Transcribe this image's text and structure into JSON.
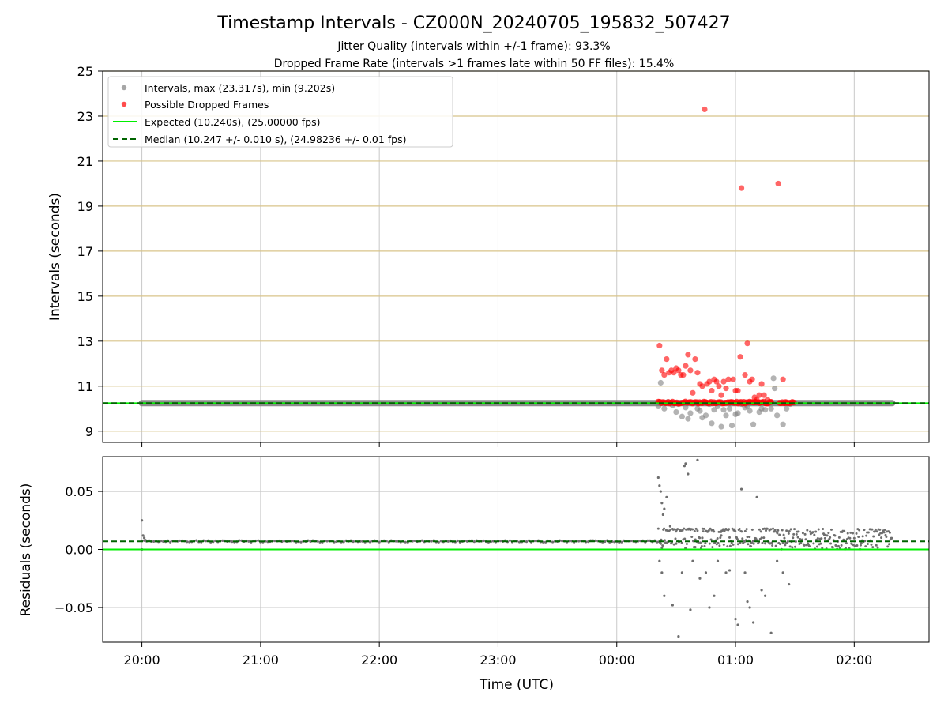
{
  "chart_data": [
    {
      "panel": "top",
      "type": "scatter",
      "title": "Timestamp Intervals - CZ000N_20240705_195832_507427",
      "subtitle_lines": [
        "Jitter Quality (intervals within +/-1 frame): 93.3%",
        "Dropped Frame Rate (intervals >1 frames late within 50 FF files): 15.4%"
      ],
      "xlabel": "",
      "ylabel": "Intervals (seconds)",
      "xlim_hours": [
        19.67,
        26.63
      ],
      "ylim": [
        8.5,
        25
      ],
      "yticks": [
        9,
        11,
        13,
        15,
        17,
        19,
        21,
        23,
        25
      ],
      "ytick_labels": [
        "9",
        "11",
        "13",
        "15",
        "17",
        "19",
        "21",
        "23",
        "25"
      ],
      "xticks_hours": [
        20,
        21,
        22,
        23,
        24,
        25,
        26
      ],
      "grid": true,
      "legend_position": "top-left",
      "legend": [
        "Intervals, max (23.317s), min (9.202s)",
        "Possible Dropped Frames",
        "Expected (10.240s), (25.00000 fps)",
        "Median (10.247 +/- 0.010 s), (24.98236 +/- 0.01 fps)"
      ],
      "expected_line": 10.24,
      "median_line": 10.247,
      "intervals_band": {
        "x_start_hours": 20.0,
        "x_end_hours": 26.32,
        "y": 10.247
      },
      "intervals_scatter": [
        [
          24.35,
          10.1
        ],
        [
          24.37,
          11.15
        ],
        [
          24.4,
          10.0
        ],
        [
          24.43,
          10.3
        ],
        [
          24.47,
          10.15
        ],
        [
          24.5,
          9.85
        ],
        [
          24.52,
          10.2
        ],
        [
          24.55,
          9.65
        ],
        [
          24.58,
          10.05
        ],
        [
          24.6,
          9.55
        ],
        [
          24.62,
          9.8
        ],
        [
          24.65,
          10.25
        ],
        [
          24.68,
          10.0
        ],
        [
          24.7,
          9.9
        ],
        [
          24.72,
          9.6
        ],
        [
          24.75,
          9.7
        ],
        [
          24.78,
          10.2
        ],
        [
          24.8,
          9.35
        ],
        [
          24.82,
          9.95
        ],
        [
          24.85,
          10.1
        ],
        [
          24.88,
          9.2
        ],
        [
          24.9,
          9.95
        ],
        [
          24.92,
          9.7
        ],
        [
          24.95,
          10.0
        ],
        [
          24.97,
          9.25
        ],
        [
          25.0,
          9.75
        ],
        [
          25.02,
          9.8
        ],
        [
          25.05,
          10.2
        ],
        [
          25.08,
          10.05
        ],
        [
          25.1,
          10.1
        ],
        [
          25.12,
          9.9
        ],
        [
          25.15,
          9.3
        ],
        [
          25.17,
          10.3
        ],
        [
          25.2,
          9.85
        ],
        [
          25.22,
          10.0
        ],
        [
          25.25,
          9.95
        ],
        [
          25.28,
          10.25
        ],
        [
          25.3,
          10.0
        ],
        [
          25.32,
          11.35
        ],
        [
          25.33,
          10.9
        ],
        [
          25.35,
          9.7
        ],
        [
          25.4,
          9.3
        ],
        [
          25.43,
          10.0
        ],
        [
          25.46,
          10.2
        ]
      ],
      "dropped_frames_band": {
        "x_start_hours": 24.35,
        "x_end_hours": 25.5,
        "y": 10.27
      },
      "dropped_frames": [
        [
          24.36,
          12.8
        ],
        [
          24.38,
          11.7
        ],
        [
          24.4,
          11.5
        ],
        [
          24.42,
          12.2
        ],
        [
          24.44,
          11.6
        ],
        [
          24.46,
          11.7
        ],
        [
          24.48,
          11.6
        ],
        [
          24.5,
          11.8
        ],
        [
          24.52,
          11.7
        ],
        [
          24.54,
          11.5
        ],
        [
          24.56,
          11.5
        ],
        [
          24.58,
          11.9
        ],
        [
          24.6,
          12.4
        ],
        [
          24.62,
          11.7
        ],
        [
          24.64,
          10.7
        ],
        [
          24.66,
          12.2
        ],
        [
          24.68,
          11.6
        ],
        [
          24.7,
          11.1
        ],
        [
          24.72,
          11.0
        ],
        [
          24.74,
          23.3
        ],
        [
          24.76,
          11.1
        ],
        [
          24.78,
          11.2
        ],
        [
          24.8,
          10.8
        ],
        [
          24.82,
          11.3
        ],
        [
          24.84,
          11.2
        ],
        [
          24.86,
          11.0
        ],
        [
          24.88,
          10.6
        ],
        [
          24.9,
          11.2
        ],
        [
          24.92,
          10.9
        ],
        [
          24.94,
          11.3
        ],
        [
          24.96,
          10.3
        ],
        [
          24.98,
          11.3
        ],
        [
          25.0,
          10.8
        ],
        [
          25.02,
          10.8
        ],
        [
          25.04,
          12.3
        ],
        [
          25.05,
          19.8
        ],
        [
          25.08,
          11.5
        ],
        [
          25.1,
          12.9
        ],
        [
          25.12,
          11.2
        ],
        [
          25.14,
          11.3
        ],
        [
          25.16,
          10.5
        ],
        [
          25.18,
          10.4
        ],
        [
          25.2,
          10.6
        ],
        [
          25.22,
          11.1
        ],
        [
          25.24,
          10.6
        ],
        [
          25.27,
          10.4
        ],
        [
          25.3,
          10.3
        ],
        [
          25.36,
          20.0
        ],
        [
          25.4,
          11.3
        ],
        [
          25.42,
          10.3
        ]
      ]
    },
    {
      "panel": "bottom",
      "type": "scatter",
      "xlabel": "Time (UTC)",
      "ylabel": "Residuals (seconds)",
      "xlim_hours": [
        19.67,
        26.63
      ],
      "ylim": [
        -0.08,
        0.08
      ],
      "yticks": [
        -0.05,
        0.0,
        0.05
      ],
      "ytick_labels": [
        "−0.05",
        "0.00",
        "0.05"
      ],
      "xticks_hours": [
        20,
        21,
        22,
        23,
        24,
        25,
        26
      ],
      "xtick_labels": [
        "20:00",
        "21:00",
        "22:00",
        "23:00",
        "00:00",
        "01:00",
        "02:00"
      ],
      "grid": true,
      "expected_line": 0.0,
      "median_line": 0.007,
      "residual_band": {
        "x_start_hours": 20.0,
        "x_end_hours": 24.35,
        "y": 0.007
      },
      "residual_points": [
        [
          20.0,
          0.025
        ],
        [
          20.01,
          0.012
        ],
        [
          20.02,
          0.01
        ],
        [
          20.03,
          0.008
        ],
        [
          20.0,
          0.0
        ],
        [
          24.35,
          0.062
        ],
        [
          24.36,
          0.055
        ],
        [
          24.37,
          0.05
        ],
        [
          24.38,
          0.04
        ],
        [
          24.39,
          0.03
        ],
        [
          24.4,
          0.035
        ],
        [
          24.42,
          0.045
        ],
        [
          24.36,
          -0.01
        ],
        [
          24.37,
          0.005
        ],
        [
          24.38,
          -0.02
        ],
        [
          24.4,
          -0.04
        ],
        [
          24.45,
          0.02
        ],
        [
          24.47,
          -0.048
        ],
        [
          24.5,
          0.005
        ],
        [
          24.52,
          -0.075
        ],
        [
          24.55,
          -0.02
        ],
        [
          24.57,
          0.072
        ],
        [
          24.58,
          0.074
        ],
        [
          24.6,
          0.065
        ],
        [
          24.62,
          -0.052
        ],
        [
          24.64,
          -0.01
        ],
        [
          24.66,
          0.002
        ],
        [
          24.68,
          0.077
        ],
        [
          24.7,
          -0.025
        ],
        [
          24.72,
          0.01
        ],
        [
          24.75,
          -0.02
        ],
        [
          24.78,
          -0.05
        ],
        [
          24.82,
          -0.04
        ],
        [
          24.85,
          -0.01
        ],
        [
          24.88,
          0.012
        ],
        [
          24.92,
          -0.02
        ],
        [
          24.95,
          -0.018
        ],
        [
          25.0,
          -0.06
        ],
        [
          25.02,
          -0.065
        ],
        [
          25.05,
          0.052
        ],
        [
          25.08,
          -0.02
        ],
        [
          25.1,
          -0.045
        ],
        [
          25.12,
          -0.05
        ],
        [
          25.15,
          -0.063
        ],
        [
          25.18,
          0.045
        ],
        [
          25.22,
          -0.035
        ],
        [
          25.25,
          -0.04
        ],
        [
          25.3,
          -0.072
        ],
        [
          25.35,
          -0.01
        ],
        [
          25.4,
          -0.02
        ],
        [
          25.45,
          -0.03
        ]
      ],
      "residual_cloud": {
        "x_start_hours": 24.35,
        "x_end_hours": 26.32,
        "y_low": 0.0,
        "y_high": 0.018
      }
    }
  ],
  "colors": {
    "intervals": "#808080",
    "dropped": "#ff0000",
    "expected": "#00ee00",
    "median": "#006400",
    "hgrid_top": "#d8c48a",
    "grid": "#c8c8c8"
  }
}
